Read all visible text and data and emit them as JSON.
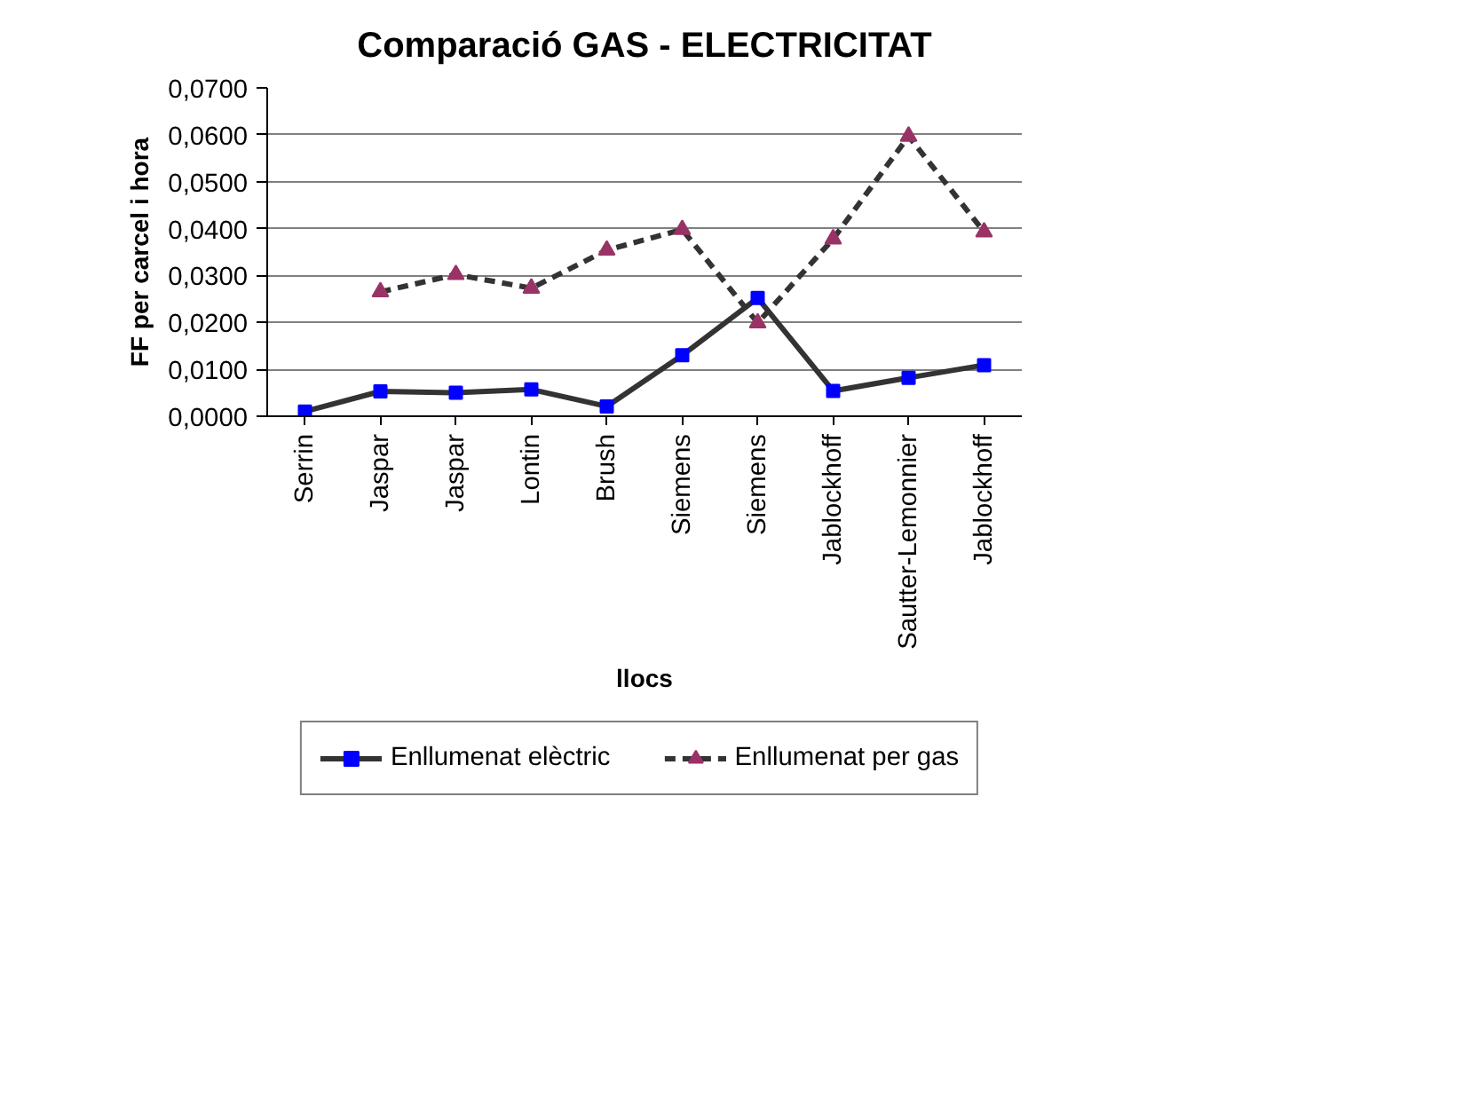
{
  "chart_data": {
    "type": "line",
    "title": "Comparació GAS - ELECTRICITAT",
    "xlabel": "llocs",
    "ylabel": "FF per carcel i hora",
    "categories": [
      "Serrin",
      "Jaspar",
      "Jaspar",
      "Lontin",
      "Brush",
      "Siemens",
      "Siemens",
      "Jablockhoff",
      "Sautter-Lemonnier",
      "Jablockhoff"
    ],
    "series": [
      {
        "name": "Enllumenat elèctric",
        "color": "#0000ff",
        "marker": "square",
        "line_style": "solid",
        "values": [
          0.001,
          0.0053,
          0.005,
          0.0057,
          0.0021,
          0.013,
          0.0252,
          0.0054,
          0.0082,
          0.0109
        ]
      },
      {
        "name": "Enllumenat per gas",
        "color": "#993366",
        "marker": "triangle",
        "line_style": "dashed",
        "values": [
          null,
          0.0265,
          0.0302,
          0.0273,
          0.0354,
          0.0398,
          0.0199,
          0.0378,
          0.0597,
          0.0393
        ]
      }
    ],
    "ylim": [
      0,
      0.07
    ],
    "yticks": [
      {
        "value": 0,
        "label": "0,0000"
      },
      {
        "value": 0.01,
        "label": "0,0100"
      },
      {
        "value": 0.02,
        "label": "0,0200"
      },
      {
        "value": 0.03,
        "label": "0,0300"
      },
      {
        "value": 0.04,
        "label": "0,0400"
      },
      {
        "value": 0.05,
        "label": "0,0500"
      },
      {
        "value": 0.06,
        "label": "0,0600"
      },
      {
        "value": 0.07,
        "label": "0,0700"
      }
    ],
    "grid": "y",
    "legend": "bottom"
  }
}
